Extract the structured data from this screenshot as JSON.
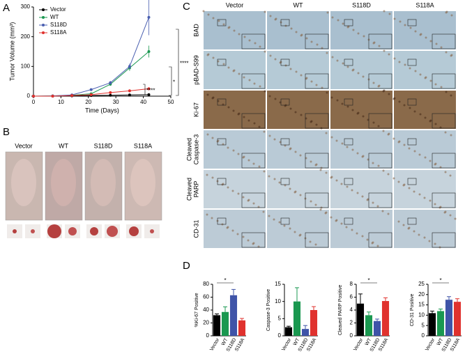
{
  "panel_labels": [
    "A",
    "B",
    "C",
    "D"
  ],
  "photos": {
    "labels": [
      "Vector",
      "WT",
      "S118D",
      "S118A"
    ]
  },
  "ihc": {
    "columns": [
      "Vector",
      "WT",
      "S118D",
      "S118A"
    ],
    "rows": [
      [
        "BAD"
      ],
      [
        "pBAD-S99"
      ],
      [
        "Ki-67"
      ],
      [
        "Cleaved",
        "Caspase-3"
      ],
      [
        "Cleaved",
        "PARP"
      ],
      [
        "CD-31"
      ]
    ]
  },
  "chart_data": [
    {
      "type": "line",
      "x_label": "Time (Days)",
      "y_label": "Tumor Volume (mm³)",
      "x": [
        0,
        7,
        14,
        21,
        28,
        35,
        42
      ],
      "xlim": [
        0,
        50
      ],
      "xticks": [
        0,
        10,
        20,
        30,
        40,
        50
      ],
      "ylim": [
        0,
        300
      ],
      "yticks": [
        0,
        100,
        200,
        300
      ],
      "series": [
        {
          "name": "Vector",
          "color": "#000000",
          "values": [
            0,
            0,
            1,
            2,
            3,
            4,
            5
          ],
          "errors": [
            0,
            0,
            0.5,
            0.5,
            1,
            1,
            2
          ]
        },
        {
          "name": "WT",
          "color": "#1a9850",
          "values": [
            0,
            1,
            3,
            8,
            40,
            95,
            150
          ],
          "errors": [
            0,
            0.5,
            1,
            3,
            5,
            10,
            20
          ]
        },
        {
          "name": "S118D",
          "color": "#4a5fb0",
          "values": [
            0,
            1,
            4,
            22,
            45,
            100,
            265
          ],
          "errors": [
            0,
            0.5,
            1,
            4,
            6,
            10,
            60
          ]
        },
        {
          "name": "S118A",
          "color": "#e0322e",
          "values": [
            0,
            0,
            2,
            5,
            12,
            18,
            25
          ],
          "errors": [
            0,
            0,
            1,
            2,
            3,
            5,
            5
          ]
        }
      ],
      "annotations": [
        "****",
        "*",
        "****"
      ]
    },
    {
      "type": "bar",
      "y_label": "%Ki-67 Positive",
      "categories": [
        "Vector",
        "WT",
        "S118D",
        "S118A"
      ],
      "colors": [
        "#000000",
        "#1a9850",
        "#3f54a8",
        "#e0322e"
      ],
      "values": [
        32,
        37,
        63,
        24
      ],
      "errors": [
        2,
        8,
        9,
        3
      ],
      "ylim": [
        0,
        80
      ],
      "yticks": [
        0,
        20,
        40,
        60,
        80
      ],
      "annotation": "*"
    },
    {
      "type": "bar",
      "y_label": "Caspase-3 Positive",
      "categories": [
        "Vector",
        "WT",
        "S118D",
        "S118A"
      ],
      "colors": [
        "#000000",
        "#1a9850",
        "#3f54a8",
        "#e0322e"
      ],
      "values": [
        2.5,
        10,
        2,
        7.5
      ],
      "errors": [
        0.3,
        4,
        1,
        1
      ],
      "ylim": [
        0,
        15
      ],
      "yticks": [
        0,
        5,
        10,
        15
      ]
    },
    {
      "type": "bar",
      "y_label": "Cleaved PARP Positive",
      "categories": [
        "Vector",
        "WT",
        "S118D",
        "S118A"
      ],
      "colors": [
        "#000000",
        "#1a9850",
        "#3f54a8",
        "#e0322e"
      ],
      "values": [
        5,
        3.2,
        2.3,
        5.4
      ],
      "errors": [
        1.5,
        0.5,
        0.3,
        0.5
      ],
      "ylim": [
        0,
        8
      ],
      "yticks": [
        0,
        2,
        4,
        6,
        8
      ],
      "annotation": "*"
    },
    {
      "type": "bar",
      "y_label": "CD-31 Positive",
      "categories": [
        "Vector",
        "WT",
        "S118D",
        "S118A"
      ],
      "colors": [
        "#000000",
        "#1a9850",
        "#3f54a8",
        "#e0322e"
      ],
      "values": [
        11,
        12,
        17.5,
        16.5
      ],
      "errors": [
        1,
        1,
        1.5,
        1.5
      ],
      "ylim": [
        0,
        25
      ],
      "yticks": [
        0,
        5,
        10,
        15,
        20,
        25
      ],
      "annotation": "*"
    }
  ]
}
